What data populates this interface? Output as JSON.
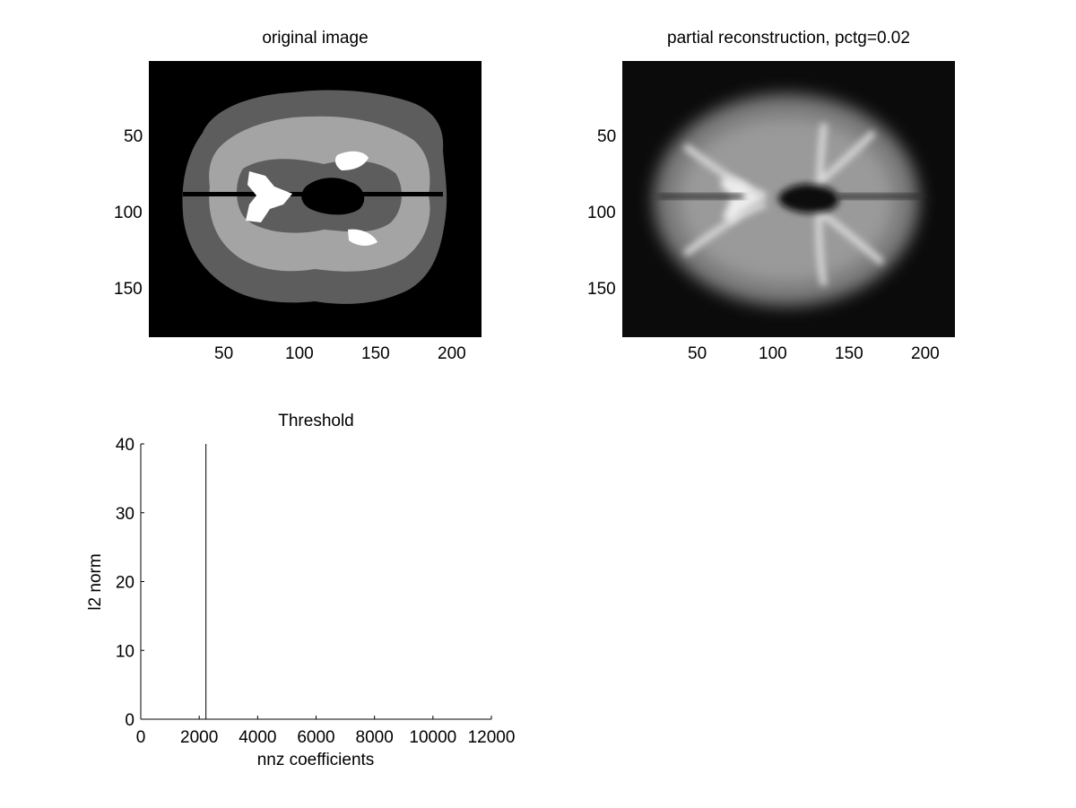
{
  "chart_data": [
    {
      "type": "image",
      "title": "original image",
      "xticks": [
        "50",
        "100",
        "150",
        "200"
      ],
      "yticks": [
        "50",
        "100",
        "150"
      ],
      "xlim": [
        0.5,
        218.5
      ],
      "ylim": [
        0.5,
        182.5
      ],
      "colors": {
        "background": "#000000",
        "csf": "#ffffff",
        "gray_matter": "#5d5d5d",
        "white_matter": "#a4a4a4"
      }
    },
    {
      "type": "image",
      "title": "partial reconstruction, pctg=0.02",
      "xticks": [
        "50",
        "100",
        "150",
        "200"
      ],
      "yticks": [
        "50",
        "100",
        "150"
      ],
      "xlim": [
        0.5,
        218.5
      ],
      "ylim": [
        0.5,
        182.5
      ],
      "colors": {
        "background": "#0b0b0b",
        "tissue": "#9a9a9a",
        "bright": "#e6e6e6"
      }
    },
    {
      "type": "line",
      "title": "Threshold",
      "xlabel": "nnz coefficients",
      "ylabel": "l2 norm",
      "xlim": [
        0,
        12000
      ],
      "ylim": [
        0,
        40
      ],
      "xticks": [
        "0",
        "2000",
        "4000",
        "6000",
        "8000",
        "10000",
        "12000"
      ],
      "yticks": [
        "0",
        "10",
        "20",
        "30",
        "40"
      ],
      "series": [
        {
          "x": [
            2230,
            2230
          ],
          "y": [
            0,
            40
          ],
          "color": "#000000"
        }
      ]
    }
  ]
}
